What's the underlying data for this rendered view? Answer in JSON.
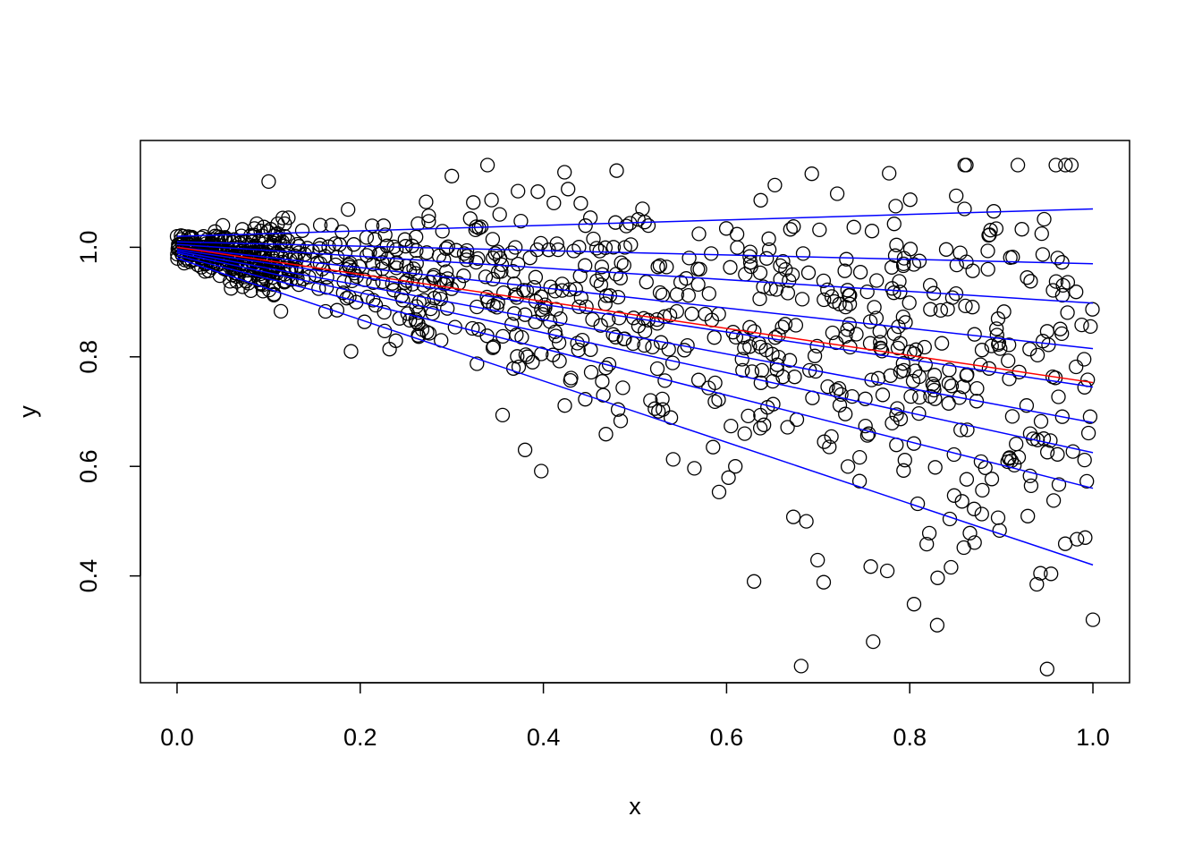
{
  "chart_data": {
    "type": "scatter",
    "title": "",
    "xlabel": "x",
    "ylabel": "y",
    "xlim": [
      -0.04,
      1.04
    ],
    "ylim": [
      0.205,
      1.195
    ],
    "x_ticks": [
      0.0,
      0.2,
      0.4,
      0.6,
      0.8,
      1.0
    ],
    "x_tick_labels": [
      "0.0",
      "0.2",
      "0.4",
      "0.6",
      "0.8",
      "1.0"
    ],
    "y_ticks": [
      0.4,
      0.6,
      0.8,
      1.0
    ],
    "y_tick_labels": [
      "0.4",
      "0.6",
      "0.8",
      "1.0"
    ],
    "grid": false,
    "legend": "none",
    "colors": {
      "points": "#000000",
      "quantile_lines": "#0000ff",
      "mean_line": "#ff0000",
      "frame": "#000000"
    },
    "point_count": 1000,
    "points_description": "Open circles scattered around y=1 at x=0 and fanning downward as x increases; spread grows with x (roughly y in [0.93,1.06] near x=0 to y in [0.23,1.15] near x=1).",
    "quantile_lines": [
      {
        "x": [
          0,
          1
        ],
        "y": [
          0.98,
          0.42
        ]
      },
      {
        "x": [
          0,
          1
        ],
        "y": [
          0.985,
          0.56
        ]
      },
      {
        "x": [
          0,
          1
        ],
        "y": [
          0.99,
          0.625
        ]
      },
      {
        "x": [
          0,
          1
        ],
        "y": [
          0.993,
          0.68
        ]
      },
      {
        "x": [
          0,
          1
        ],
        "y": [
          0.996,
          0.745
        ]
      },
      {
        "x": [
          0,
          1
        ],
        "y": [
          1.0,
          0.815
        ]
      },
      {
        "x": [
          0,
          1
        ],
        "y": [
          1.005,
          0.898
        ]
      },
      {
        "x": [
          0,
          1
        ],
        "y": [
          1.01,
          0.97
        ]
      },
      {
        "x": [
          0,
          1
        ],
        "y": [
          1.02,
          1.07
        ]
      }
    ],
    "mean_line": {
      "x": [
        0,
        1
      ],
      "y": [
        1.0,
        0.753
      ]
    },
    "sample_points": [
      {
        "x": 0.0,
        "y": 1.02
      },
      {
        "x": 0.01,
        "y": 0.98
      },
      {
        "x": 0.05,
        "y": 1.04
      },
      {
        "x": 0.1,
        "y": 1.12
      },
      {
        "x": 0.19,
        "y": 0.81
      },
      {
        "x": 0.3,
        "y": 1.13
      },
      {
        "x": 0.38,
        "y": 0.63
      },
      {
        "x": 0.48,
        "y": 1.14
      },
      {
        "x": 0.63,
        "y": 0.39
      },
      {
        "x": 0.76,
        "y": 0.28
      },
      {
        "x": 0.83,
        "y": 0.31
      },
      {
        "x": 0.95,
        "y": 0.23
      },
      {
        "x": 0.97,
        "y": 1.15
      },
      {
        "x": 1.0,
        "y": 0.32
      }
    ]
  }
}
